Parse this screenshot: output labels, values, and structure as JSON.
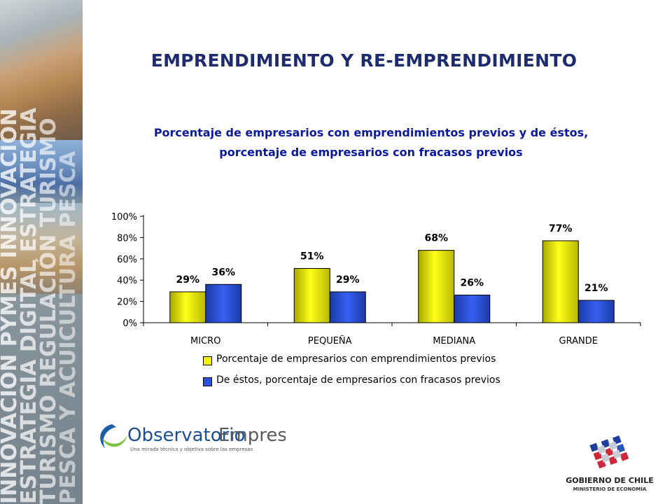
{
  "slide": {
    "title": "EMPRENDIMIENTO Y RE-EMPRENDIMIENTO",
    "sidebar_words": [
      "INNOVACIÓN PYMES INNOVACIÓN",
      "ESTRATEGIA DIGITAL ESTRATEGIA",
      "TURISMO REGULACIÓN TURISMO",
      "PESCA Y ACUICULTURA PESCA"
    ],
    "logo_observatorio": {
      "name_part1": "Observatorio",
      "name_part2": "Empresas",
      "tagline": "Una mirada técnica y objetiva sobre las empresas"
    },
    "logo_gobierno": {
      "line1": "GOBIERNO DE CHILE",
      "line2": "MINISTERIO DE ECONOMÍA"
    }
  },
  "chart_data": {
    "type": "bar",
    "title": [
      "Porcentaje de empresarios con emprendimientos previos y de éstos,",
      "porcentaje de empresarios con fracasos previos"
    ],
    "categories": [
      "MICRO",
      "PEQUEÑA",
      "MEDIANA",
      "GRANDE"
    ],
    "series": [
      {
        "name": "Porcentaje de empresarios con emprendimientos previos",
        "values": [
          29,
          51,
          68,
          77
        ],
        "labels": [
          "29%",
          "51%",
          "68%",
          "77%"
        ],
        "color": "#f2f200"
      },
      {
        "name": "De éstos, porcentaje de empresarios con fracasos previos",
        "values": [
          36,
          29,
          26,
          21
        ],
        "labels": [
          "36%",
          "29%",
          "26%",
          "21%"
        ],
        "color": "#2a52e0"
      }
    ],
    "yticks": [
      "0%",
      "20%",
      "40%",
      "60%",
      "80%",
      "100%"
    ],
    "ylim": [
      0,
      100
    ],
    "grid": false,
    "legend": "bottom"
  },
  "colors": {
    "title": "#1e2c6f",
    "chart_title": "#0a1a9b",
    "bar_yellow": "#f2f200",
    "bar_blue": "#2a52e0"
  }
}
